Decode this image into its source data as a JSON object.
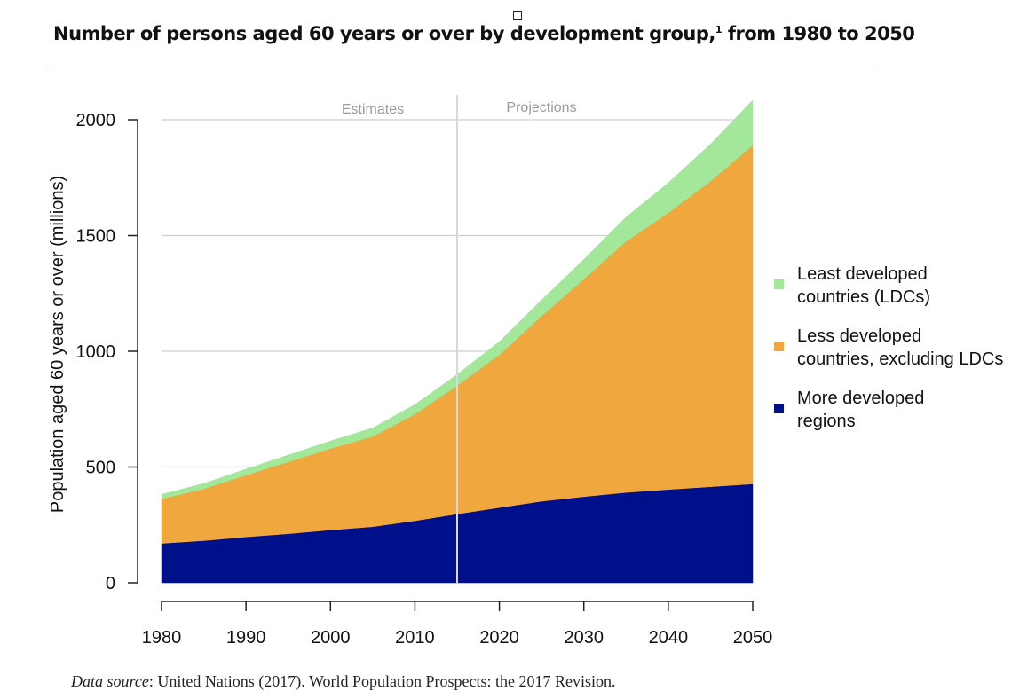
{
  "header": {
    "marker_icon": "checkbox-square-icon",
    "title_main": "Number of persons aged 60 years or over by development group,",
    "title_note": "1",
    "title_tail": " from 1980 to 2050"
  },
  "footer": {
    "source_label": "Data source",
    "source_text": ": United Nations (2017). World Population Prospects: the 2017 Revision."
  },
  "legend": {
    "items": [
      {
        "line1": "Least developed",
        "line2": "countries (LDCs)",
        "color": "#a3e89a"
      },
      {
        "line1": "Less developed",
        "line2": "countries, excluding LDCs",
        "color": "#f0a83e"
      },
      {
        "line1": "More developed",
        "line2": "regions",
        "color": "#000f8a"
      }
    ]
  },
  "chart_data": {
    "type": "area",
    "stacked": true,
    "title": "Number of persons aged 60 years or over by development group, from 1980 to 2050",
    "xlabel": "",
    "ylabel": "Population aged 60 years or over (millions)",
    "xlim": [
      1980,
      2050
    ],
    "ylim": [
      0,
      2000
    ],
    "x_ticks": [
      1980,
      1990,
      2000,
      2010,
      2020,
      2030,
      2040,
      2050
    ],
    "y_ticks": [
      0,
      500,
      1000,
      1500,
      2000
    ],
    "grid": "horizontal",
    "legend_position": "right",
    "divider": {
      "x": 2015,
      "left_label": "Estimates",
      "right_label": "Projections"
    },
    "x": [
      1980,
      1985,
      1990,
      1995,
      2000,
      2005,
      2010,
      2015,
      2020,
      2025,
      2030,
      2035,
      2040,
      2045,
      2050
    ],
    "series": [
      {
        "name": "More developed regions",
        "color": "#000f8a",
        "values": [
          170,
          182,
          198,
          212,
          228,
          242,
          268,
          297,
          325,
          352,
          372,
          390,
          403,
          415,
          427
        ]
      },
      {
        "name": "Less developed countries, excluding LDCs",
        "color": "#f0a83e",
        "values": [
          192,
          224,
          267,
          310,
          352,
          390,
          460,
          555,
          660,
          800,
          940,
          1085,
          1195,
          1320,
          1463
        ]
      },
      {
        "name": "Least developed countries (LDCs)",
        "color": "#a3e89a",
        "values": [
          20,
          23,
          26,
          30,
          33,
          37,
          42,
          48,
          57,
          70,
          85,
          105,
          130,
          160,
          195
        ]
      }
    ]
  }
}
